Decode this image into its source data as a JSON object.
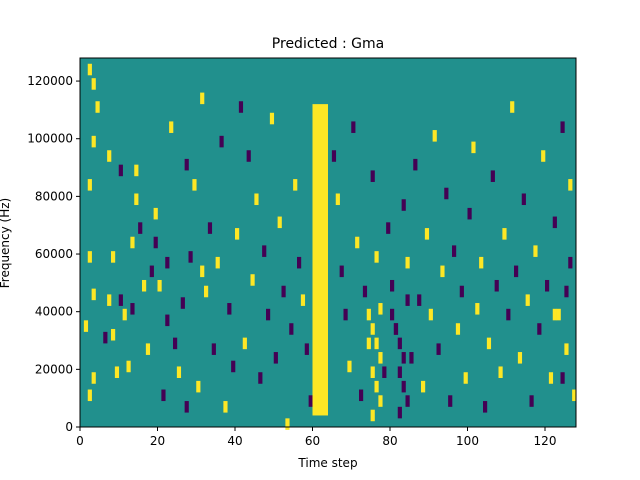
{
  "chart_data": {
    "type": "heatmap",
    "title": "Predicted : Gma",
    "xlabel": "Time step",
    "ylabel": "Frequency (Hz)",
    "xlim": [
      0,
      128
    ],
    "ylim": [
      0,
      128000
    ],
    "x_ticks": [
      0,
      20,
      40,
      60,
      80,
      100,
      120
    ],
    "y_ticks": [
      0,
      20000,
      40000,
      60000,
      80000,
      100000,
      120000
    ],
    "x_tick_labels": [
      "0",
      "20",
      "40",
      "60",
      "80",
      "100",
      "120"
    ],
    "y_tick_labels": [
      "0",
      "20000",
      "40000",
      "60000",
      "80000",
      "100000",
      "120000"
    ],
    "grid": false,
    "legend": "none",
    "colors": {
      "background": "#21908d",
      "low": "#440154",
      "high": "#fde725"
    },
    "band": {
      "x_start": 60,
      "x_end": 64,
      "y_start": 4000,
      "y_end": 112000,
      "value": "high"
    },
    "cells": [
      {
        "x": 2,
        "y": 12,
        "v": 1
      },
      {
        "x": 3,
        "y": 18,
        "v": 1
      },
      {
        "x": 1,
        "y": 36,
        "v": 1
      },
      {
        "x": 3,
        "y": 47,
        "v": 1
      },
      {
        "x": 2,
        "y": 60,
        "v": 1
      },
      {
        "x": 2,
        "y": 85,
        "v": 1
      },
      {
        "x": 3,
        "y": 100,
        "v": 1
      },
      {
        "x": 4,
        "y": 112,
        "v": 1
      },
      {
        "x": 3,
        "y": 120,
        "v": 1
      },
      {
        "x": 2,
        "y": 125,
        "v": 1
      },
      {
        "x": 6,
        "y": 32,
        "v": 0
      },
      {
        "x": 7,
        "y": 45,
        "v": 1
      },
      {
        "x": 7,
        "y": 95,
        "v": 1
      },
      {
        "x": 8,
        "y": 60,
        "v": 1
      },
      {
        "x": 9,
        "y": 20,
        "v": 1
      },
      {
        "x": 8,
        "y": 33,
        "v": 1
      },
      {
        "x": 10,
        "y": 45,
        "v": 0
      },
      {
        "x": 10,
        "y": 90,
        "v": 0
      },
      {
        "x": 11,
        "y": 40,
        "v": 1
      },
      {
        "x": 12,
        "y": 22,
        "v": 1
      },
      {
        "x": 13,
        "y": 42,
        "v": 0
      },
      {
        "x": 13,
        "y": 65,
        "v": 1
      },
      {
        "x": 14,
        "y": 80,
        "v": 1
      },
      {
        "x": 14,
        "y": 90,
        "v": 1
      },
      {
        "x": 15,
        "y": 70,
        "v": 0
      },
      {
        "x": 16,
        "y": 50,
        "v": 1
      },
      {
        "x": 17,
        "y": 28,
        "v": 1
      },
      {
        "x": 18,
        "y": 55,
        "v": 0
      },
      {
        "x": 19,
        "y": 65,
        "v": 0
      },
      {
        "x": 19,
        "y": 75,
        "v": 1
      },
      {
        "x": 20,
        "y": 50,
        "v": 1
      },
      {
        "x": 21,
        "y": 12,
        "v": 0
      },
      {
        "x": 22,
        "y": 38,
        "v": 0
      },
      {
        "x": 22,
        "y": 58,
        "v": 0
      },
      {
        "x": 23,
        "y": 105,
        "v": 1
      },
      {
        "x": 24,
        "y": 30,
        "v": 0
      },
      {
        "x": 25,
        "y": 20,
        "v": 1
      },
      {
        "x": 26,
        "y": 44,
        "v": 0
      },
      {
        "x": 27,
        "y": 8,
        "v": 0
      },
      {
        "x": 27,
        "y": 92,
        "v": 0
      },
      {
        "x": 28,
        "y": 60,
        "v": 0
      },
      {
        "x": 29,
        "y": 85,
        "v": 1
      },
      {
        "x": 30,
        "y": 15,
        "v": 1
      },
      {
        "x": 31,
        "y": 55,
        "v": 1
      },
      {
        "x": 31,
        "y": 115,
        "v": 1
      },
      {
        "x": 32,
        "y": 48,
        "v": 1
      },
      {
        "x": 33,
        "y": 70,
        "v": 0
      },
      {
        "x": 34,
        "y": 28,
        "v": 0
      },
      {
        "x": 35,
        "y": 58,
        "v": 1
      },
      {
        "x": 36,
        "y": 100,
        "v": 0
      },
      {
        "x": 37,
        "y": 8,
        "v": 1
      },
      {
        "x": 38,
        "y": 42,
        "v": 0
      },
      {
        "x": 39,
        "y": 22,
        "v": 0
      },
      {
        "x": 40,
        "y": 68,
        "v": 1
      },
      {
        "x": 41,
        "y": 112,
        "v": 0
      },
      {
        "x": 42,
        "y": 30,
        "v": 1
      },
      {
        "x": 43,
        "y": 95,
        "v": 0
      },
      {
        "x": 44,
        "y": 52,
        "v": 1
      },
      {
        "x": 45,
        "y": 80,
        "v": 1
      },
      {
        "x": 46,
        "y": 18,
        "v": 0
      },
      {
        "x": 47,
        "y": 62,
        "v": 0
      },
      {
        "x": 48,
        "y": 40,
        "v": 0
      },
      {
        "x": 49,
        "y": 108,
        "v": 1
      },
      {
        "x": 50,
        "y": 25,
        "v": 0
      },
      {
        "x": 51,
        "y": 72,
        "v": 1
      },
      {
        "x": 52,
        "y": 48,
        "v": 0
      },
      {
        "x": 53,
        "y": 2,
        "v": 1
      },
      {
        "x": 54,
        "y": 35,
        "v": 0
      },
      {
        "x": 55,
        "y": 85,
        "v": 1
      },
      {
        "x": 56,
        "y": 58,
        "v": 0
      },
      {
        "x": 57,
        "y": 45,
        "v": 1
      },
      {
        "x": 58,
        "y": 28,
        "v": 0
      },
      {
        "x": 59,
        "y": 10,
        "v": 0
      },
      {
        "x": 65,
        "y": 95,
        "v": 0
      },
      {
        "x": 66,
        "y": 80,
        "v": 1
      },
      {
        "x": 67,
        "y": 55,
        "v": 0
      },
      {
        "x": 68,
        "y": 40,
        "v": 0
      },
      {
        "x": 69,
        "y": 22,
        "v": 1
      },
      {
        "x": 70,
        "y": 105,
        "v": 0
      },
      {
        "x": 71,
        "y": 65,
        "v": 1
      },
      {
        "x": 72,
        "y": 12,
        "v": 0
      },
      {
        "x": 73,
        "y": 48,
        "v": 0
      },
      {
        "x": 74,
        "y": 30,
        "v": 1
      },
      {
        "x": 75,
        "y": 88,
        "v": 0
      },
      {
        "x": 76,
        "y": 60,
        "v": 1
      },
      {
        "x": 77,
        "y": 42,
        "v": 1
      },
      {
        "x": 78,
        "y": 20,
        "v": 0
      },
      {
        "x": 79,
        "y": 70,
        "v": 0
      },
      {
        "x": 80,
        "y": 50,
        "v": 0
      },
      {
        "x": 81,
        "y": 35,
        "v": 0
      },
      {
        "x": 82,
        "y": 6,
        "v": 0
      },
      {
        "x": 83,
        "y": 78,
        "v": 0
      },
      {
        "x": 84,
        "y": 58,
        "v": 1
      },
      {
        "x": 85,
        "y": 25,
        "v": 0
      },
      {
        "x": 86,
        "y": 92,
        "v": 0
      },
      {
        "x": 87,
        "y": 45,
        "v": 0
      },
      {
        "x": 88,
        "y": 15,
        "v": 1
      },
      {
        "x": 89,
        "y": 68,
        "v": 1
      },
      {
        "x": 90,
        "y": 40,
        "v": 1
      },
      {
        "x": 91,
        "y": 102,
        "v": 1
      },
      {
        "x": 92,
        "y": 28,
        "v": 0
      },
      {
        "x": 93,
        "y": 55,
        "v": 1
      },
      {
        "x": 94,
        "y": 82,
        "v": 0
      },
      {
        "x": 95,
        "y": 10,
        "v": 0
      },
      {
        "x": 96,
        "y": 62,
        "v": 0
      },
      {
        "x": 97,
        "y": 35,
        "v": 1
      },
      {
        "x": 98,
        "y": 48,
        "v": 0
      },
      {
        "x": 99,
        "y": 18,
        "v": 1
      },
      {
        "x": 100,
        "y": 75,
        "v": 0
      },
      {
        "x": 101,
        "y": 98,
        "v": 1
      },
      {
        "x": 102,
        "y": 42,
        "v": 1
      },
      {
        "x": 103,
        "y": 58,
        "v": 1
      },
      {
        "x": 104,
        "y": 8,
        "v": 0
      },
      {
        "x": 105,
        "y": 30,
        "v": 1
      },
      {
        "x": 106,
        "y": 88,
        "v": 0
      },
      {
        "x": 107,
        "y": 50,
        "v": 0
      },
      {
        "x": 108,
        "y": 20,
        "v": 1
      },
      {
        "x": 109,
        "y": 68,
        "v": 1
      },
      {
        "x": 110,
        "y": 40,
        "v": 0
      },
      {
        "x": 111,
        "y": 112,
        "v": 1
      },
      {
        "x": 112,
        "y": 55,
        "v": 0
      },
      {
        "x": 113,
        "y": 25,
        "v": 1
      },
      {
        "x": 114,
        "y": 80,
        "v": 0
      },
      {
        "x": 115,
        "y": 45,
        "v": 1
      },
      {
        "x": 116,
        "y": 10,
        "v": 0
      },
      {
        "x": 117,
        "y": 62,
        "v": 1
      },
      {
        "x": 118,
        "y": 35,
        "v": 0
      },
      {
        "x": 119,
        "y": 95,
        "v": 1
      },
      {
        "x": 120,
        "y": 50,
        "v": 0
      },
      {
        "x": 121,
        "y": 18,
        "v": 1
      },
      {
        "x": 122,
        "y": 72,
        "v": 0
      },
      {
        "x": 123,
        "y": 40,
        "v": 1
      },
      {
        "x": 124,
        "y": 105,
        "v": 0
      },
      {
        "x": 125,
        "y": 28,
        "v": 1
      },
      {
        "x": 126,
        "y": 58,
        "v": 0
      },
      {
        "x": 127,
        "y": 12,
        "v": 1
      },
      {
        "x": 126,
        "y": 85,
        "v": 1
      },
      {
        "x": 125,
        "y": 48,
        "v": 0
      },
      {
        "x": 124,
        "y": 18,
        "v": 0
      },
      {
        "x": 122,
        "y": 40,
        "v": 1
      },
      {
        "x": 74,
        "y": 40,
        "v": 1
      },
      {
        "x": 75,
        "y": 35,
        "v": 1
      },
      {
        "x": 76,
        "y": 30,
        "v": 1
      },
      {
        "x": 77,
        "y": 25,
        "v": 1
      },
      {
        "x": 75,
        "y": 20,
        "v": 1
      },
      {
        "x": 76,
        "y": 15,
        "v": 1
      },
      {
        "x": 77,
        "y": 10,
        "v": 1
      },
      {
        "x": 75,
        "y": 5,
        "v": 1
      },
      {
        "x": 80,
        "y": 40,
        "v": 0
      },
      {
        "x": 81,
        "y": 35,
        "v": 0
      },
      {
        "x": 82,
        "y": 30,
        "v": 0
      },
      {
        "x": 83,
        "y": 25,
        "v": 0
      },
      {
        "x": 84,
        "y": 45,
        "v": 0
      },
      {
        "x": 82,
        "y": 20,
        "v": 0
      },
      {
        "x": 83,
        "y": 15,
        "v": 0
      },
      {
        "x": 84,
        "y": 10,
        "v": 0
      }
    ]
  }
}
